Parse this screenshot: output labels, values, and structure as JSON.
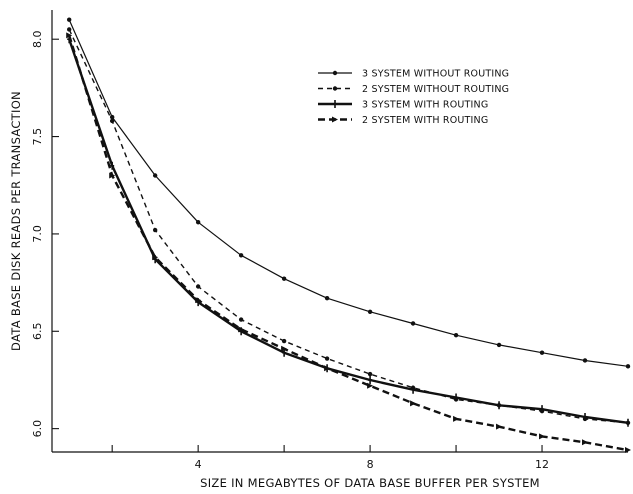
{
  "chart_data": {
    "type": "line",
    "xlabel": "SIZE IN MEGABYTES OF DATA BASE BUFFER PER SYSTEM",
    "ylabel": "DATA BASE DISK READS PER TRANSACTION",
    "xlim": [
      0.6,
      14
    ],
    "ylim": [
      5.88,
      8.15
    ],
    "x_ticks": [
      2,
      4,
      6,
      8,
      10,
      12
    ],
    "x_tick_labels": [
      "4",
      "8",
      "12"
    ],
    "x_tick_label_values": [
      4,
      8,
      12
    ],
    "y_ticks": [
      6.0,
      6.5,
      7.0,
      7.5,
      8.0
    ],
    "y_tick_labels": [
      "6.0",
      "6.5",
      "7.0",
      "7.5",
      "8.0"
    ],
    "legend_position": "top-right",
    "series": [
      {
        "name": "3 SYSTEM WITHOUT ROUTING",
        "style": "solid-thin-dot",
        "x": [
          1,
          2,
          3,
          4,
          5,
          6,
          7,
          8,
          9,
          10,
          11,
          12,
          13,
          14
        ],
        "y": [
          8.1,
          7.6,
          7.3,
          7.06,
          6.89,
          6.77,
          6.67,
          6.6,
          6.54,
          6.48,
          6.43,
          6.39,
          6.35,
          6.32
        ]
      },
      {
        "name": "2 SYSTEM WITHOUT ROUTING",
        "style": "dashed-thin-dot",
        "x": [
          1,
          2,
          3,
          4,
          5,
          6,
          7,
          8,
          9,
          10,
          11,
          12,
          13,
          14
        ],
        "y": [
          8.05,
          7.58,
          7.02,
          6.73,
          6.56,
          6.45,
          6.36,
          6.28,
          6.21,
          6.15,
          6.12,
          6.09,
          6.05,
          6.03
        ]
      },
      {
        "name": "3 SYSTEM WITH ROUTING",
        "style": "solid-thick-plus",
        "x": [
          1,
          2,
          3,
          4,
          5,
          6,
          7,
          8,
          9,
          10,
          11,
          12,
          13,
          14
        ],
        "y": [
          8.0,
          7.35,
          6.87,
          6.65,
          6.5,
          6.39,
          6.31,
          6.25,
          6.2,
          6.16,
          6.12,
          6.1,
          6.06,
          6.03
        ]
      },
      {
        "name": "2 SYSTEM WITH ROUTING",
        "style": "dashed-thick-arrow",
        "x": [
          1,
          2,
          3,
          4,
          5,
          6,
          7,
          8,
          9,
          10,
          11,
          12,
          13,
          14
        ],
        "y": [
          8.02,
          7.3,
          6.88,
          6.66,
          6.51,
          6.41,
          6.31,
          6.22,
          6.13,
          6.05,
          6.01,
          5.96,
          5.93,
          5.89
        ]
      }
    ]
  }
}
